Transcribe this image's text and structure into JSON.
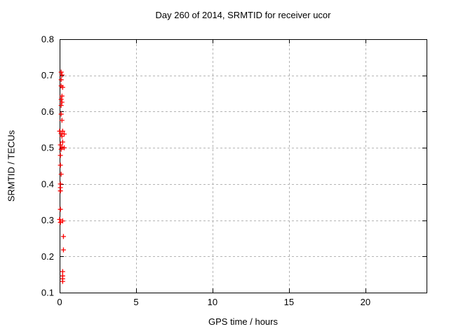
{
  "chart_data": {
    "type": "scatter",
    "title": "Day 260 of 2014, SRMTID for receiver ucor",
    "xlabel": "GPS time / hours",
    "ylabel": "SRMTID / TECUs",
    "xlim": [
      0,
      24
    ],
    "ylim": [
      0.1,
      0.8
    ],
    "xtick_values": [
      0,
      5,
      10,
      15,
      20
    ],
    "xtick_labels": [
      "0",
      "5",
      "10",
      "15",
      "20"
    ],
    "ytick_values": [
      0.1,
      0.2,
      0.3,
      0.4,
      0.5,
      0.6,
      0.7,
      0.8
    ],
    "ytick_labels": [
      "0.1",
      "0.2",
      "0.3",
      "0.4",
      "0.5",
      "0.6",
      "0.7",
      "0.8"
    ],
    "grid": true,
    "legend": "none",
    "marker": "plus",
    "colors": {
      "marker": "#ff0000",
      "grid": "#b4b4b4",
      "axis": "#000000",
      "background": "#ffffff",
      "text": "#000000"
    },
    "series": [
      {
        "name": "SRMTID",
        "points": [
          [
            0.1,
            0.709
          ],
          [
            0.15,
            0.701
          ],
          [
            0.1,
            0.688
          ],
          [
            0.1,
            0.671
          ],
          [
            0.2,
            0.667
          ],
          [
            0.15,
            0.643
          ],
          [
            0.1,
            0.634
          ],
          [
            0.15,
            0.626
          ],
          [
            0.1,
            0.617
          ],
          [
            0.1,
            0.593
          ],
          [
            0.15,
            0.576
          ],
          [
            0.0,
            0.546
          ],
          [
            0.2,
            0.546
          ],
          [
            0.1,
            0.539
          ],
          [
            0.3,
            0.538
          ],
          [
            0.15,
            0.532
          ],
          [
            0.2,
            0.516
          ],
          [
            0.05,
            0.508
          ],
          [
            0.15,
            0.502
          ],
          [
            0.3,
            0.5
          ],
          [
            0.1,
            0.496
          ],
          [
            0.05,
            0.479
          ],
          [
            0.05,
            0.452
          ],
          [
            0.1,
            0.427
          ],
          [
            0.05,
            0.4
          ],
          [
            0.05,
            0.39
          ],
          [
            0.05,
            0.381
          ],
          [
            0.05,
            0.33
          ],
          [
            0.0,
            0.302
          ],
          [
            0.2,
            0.298
          ],
          [
            0.05,
            0.294
          ],
          [
            0.25,
            0.255
          ],
          [
            0.25,
            0.218
          ],
          [
            0.2,
            0.158
          ],
          [
            0.2,
            0.146
          ],
          [
            0.2,
            0.138
          ],
          [
            0.2,
            0.131
          ]
        ]
      }
    ]
  }
}
